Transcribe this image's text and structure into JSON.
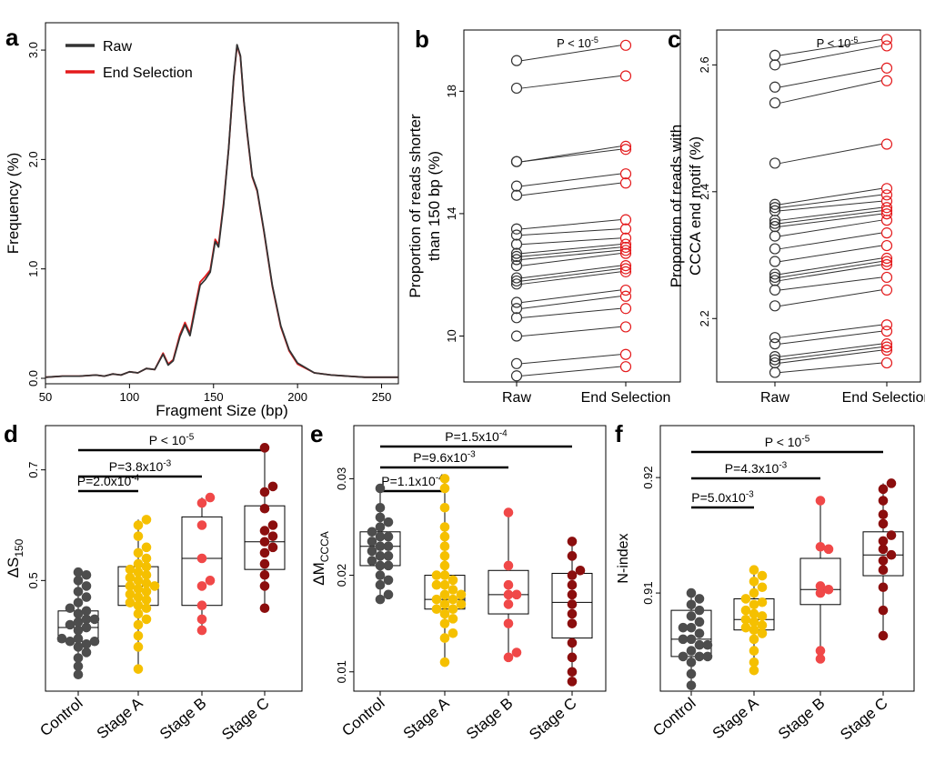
{
  "colors": {
    "raw": "#333333",
    "end": "#e41a1c",
    "control": "#4d4d4d",
    "stage_a": "#f5c000",
    "stage_b": "#f04848",
    "stage_c": "#8b0e0e"
  },
  "chart_data": [
    {
      "panel": "a",
      "type": "line",
      "xlabel": "Fragment Size (bp)",
      "ylabel": "Frequency (%)",
      "xlim": [
        50,
        260
      ],
      "ylim": [
        -0.05,
        3.25
      ],
      "xticks": [
        50,
        100,
        150,
        200,
        250
      ],
      "yticks": [
        0.0,
        1.0,
        2.0,
        3.0
      ],
      "ytick_labels": [
        "0.0",
        "1.0",
        "2.0",
        "3.0"
      ],
      "legend": [
        "Raw",
        "End Selection"
      ],
      "legend_position": "top-left",
      "series": [
        {
          "name": "Raw",
          "points": [
            [
              50,
              0.01
            ],
            [
              60,
              0.02
            ],
            [
              70,
              0.02
            ],
            [
              80,
              0.03
            ],
            [
              85,
              0.02
            ],
            [
              90,
              0.04
            ],
            [
              95,
              0.03
            ],
            [
              100,
              0.06
            ],
            [
              105,
              0.05
            ],
            [
              110,
              0.09
            ],
            [
              115,
              0.08
            ],
            [
              120,
              0.22
            ],
            [
              123,
              0.12
            ],
            [
              126,
              0.16
            ],
            [
              130,
              0.38
            ],
            [
              133,
              0.49
            ],
            [
              136,
              0.39
            ],
            [
              139,
              0.62
            ],
            [
              142,
              0.85
            ],
            [
              145,
              0.9
            ],
            [
              148,
              0.97
            ],
            [
              151,
              1.25
            ],
            [
              153,
              1.2
            ],
            [
              156,
              1.58
            ],
            [
              159,
              2.1
            ],
            [
              162,
              2.75
            ],
            [
              164,
              3.05
            ],
            [
              166,
              2.95
            ],
            [
              168,
              2.55
            ],
            [
              170,
              2.25
            ],
            [
              173,
              1.85
            ],
            [
              176,
              1.72
            ],
            [
              180,
              1.35
            ],
            [
              185,
              0.85
            ],
            [
              190,
              0.48
            ],
            [
              195,
              0.26
            ],
            [
              200,
              0.14
            ],
            [
              210,
              0.05
            ],
            [
              220,
              0.03
            ],
            [
              230,
              0.02
            ],
            [
              240,
              0.01
            ],
            [
              250,
              0.01
            ],
            [
              260,
              0.01
            ]
          ]
        },
        {
          "name": "End Selection",
          "points": [
            [
              50,
              0.01
            ],
            [
              60,
              0.02
            ],
            [
              70,
              0.02
            ],
            [
              80,
              0.03
            ],
            [
              85,
              0.02
            ],
            [
              90,
              0.04
            ],
            [
              95,
              0.03
            ],
            [
              100,
              0.06
            ],
            [
              105,
              0.05
            ],
            [
              110,
              0.09
            ],
            [
              115,
              0.08
            ],
            [
              120,
              0.23
            ],
            [
              123,
              0.13
            ],
            [
              126,
              0.17
            ],
            [
              130,
              0.4
            ],
            [
              133,
              0.51
            ],
            [
              136,
              0.41
            ],
            [
              139,
              0.65
            ],
            [
              142,
              0.88
            ],
            [
              145,
              0.93
            ],
            [
              148,
              0.99
            ],
            [
              151,
              1.27
            ],
            [
              153,
              1.22
            ],
            [
              156,
              1.6
            ],
            [
              159,
              2.1
            ],
            [
              162,
              2.74
            ],
            [
              164,
              3.04
            ],
            [
              166,
              2.94
            ],
            [
              168,
              2.54
            ],
            [
              170,
              2.24
            ],
            [
              173,
              1.84
            ],
            [
              176,
              1.71
            ],
            [
              180,
              1.34
            ],
            [
              185,
              0.84
            ],
            [
              190,
              0.47
            ],
            [
              195,
              0.25
            ],
            [
              200,
              0.13
            ],
            [
              210,
              0.05
            ],
            [
              220,
              0.03
            ],
            [
              230,
              0.02
            ],
            [
              240,
              0.01
            ],
            [
              250,
              0.01
            ],
            [
              260,
              0.01
            ]
          ]
        }
      ]
    },
    {
      "panel": "b",
      "type": "scatter",
      "ylabel_lines": [
        "Proportion of reads shorter",
        "than 150 bp (%)"
      ],
      "categories": [
        "Raw",
        "End Selection"
      ],
      "ylim": [
        8.5,
        20
      ],
      "yticks": [
        10,
        14,
        18
      ],
      "annotation": "P < 10",
      "annotation_exp": "-5",
      "pairs": [
        [
          8.7,
          9.0
        ],
        [
          9.1,
          9.4
        ],
        [
          10.0,
          10.3
        ],
        [
          10.6,
          10.9
        ],
        [
          10.9,
          11.3
        ],
        [
          11.1,
          11.5
        ],
        [
          11.7,
          12.1
        ],
        [
          11.8,
          12.2
        ],
        [
          11.9,
          12.3
        ],
        [
          12.3,
          12.7
        ],
        [
          12.5,
          12.8
        ],
        [
          12.6,
          12.9
        ],
        [
          12.7,
          13.0
        ],
        [
          13.0,
          13.2
        ],
        [
          13.3,
          13.5
        ],
        [
          13.5,
          13.8
        ],
        [
          14.6,
          15.0
        ],
        [
          14.9,
          15.3
        ],
        [
          15.7,
          16.1
        ],
        [
          15.7,
          16.2
        ],
        [
          18.1,
          18.5
        ],
        [
          19.0,
          19.5
        ]
      ]
    },
    {
      "panel": "c",
      "type": "scatter",
      "ylabel_lines": [
        "Proportion of reads with",
        "CCCA end motif (%)"
      ],
      "categories": [
        "Raw",
        "End Selection"
      ],
      "ylim": [
        2.1,
        2.655
      ],
      "yticks": [
        2.2,
        2.4,
        2.6
      ],
      "yticklabels": [
        "2.2",
        "2.4",
        "2.6"
      ],
      "annotation": "P < 10",
      "annotation_exp": "-5",
      "pairs": [
        [
          2.115,
          2.13
        ],
        [
          2.13,
          2.15
        ],
        [
          2.135,
          2.155
        ],
        [
          2.14,
          2.16
        ],
        [
          2.16,
          2.18
        ],
        [
          2.17,
          2.19
        ],
        [
          2.22,
          2.245
        ],
        [
          2.245,
          2.265
        ],
        [
          2.26,
          2.285
        ],
        [
          2.265,
          2.29
        ],
        [
          2.27,
          2.295
        ],
        [
          2.29,
          2.315
        ],
        [
          2.31,
          2.335
        ],
        [
          2.33,
          2.355
        ],
        [
          2.345,
          2.365
        ],
        [
          2.35,
          2.37
        ],
        [
          2.355,
          2.375
        ],
        [
          2.37,
          2.385
        ],
        [
          2.375,
          2.395
        ],
        [
          2.38,
          2.405
        ],
        [
          2.445,
          2.475
        ],
        [
          2.54,
          2.575
        ],
        [
          2.565,
          2.595
        ],
        [
          2.6,
          2.63
        ],
        [
          2.615,
          2.64
        ]
      ]
    },
    {
      "panel": "d",
      "type": "box",
      "ylabel": "ΔS",
      "ylabel_sub": "150",
      "categories": [
        "Control",
        "Stage A",
        "Stage B",
        "Stage C"
      ],
      "ylim": [
        0.3,
        0.78
      ],
      "yticks": [
        0.5,
        0.7
      ],
      "yticklabels": [
        "0.5",
        "0.7"
      ],
      "comparisons": [
        {
          "from": 0,
          "to": 1,
          "label": "P=2.0x10",
          "exp": "-4"
        },
        {
          "from": 0,
          "to": 2,
          "label": "P=3.8x10",
          "exp": "-3"
        },
        {
          "from": 0,
          "to": 3,
          "label": "P < 10",
          "exp": "-5"
        }
      ],
      "groups": [
        {
          "name": "Control",
          "q1": 0.39,
          "median": 0.415,
          "q3": 0.445,
          "whisker_low": 0.33,
          "whisker_high": 0.515,
          "points": [
            0.33,
            0.345,
            0.36,
            0.37,
            0.38,
            0.385,
            0.39,
            0.39,
            0.395,
            0.395,
            0.41,
            0.415,
            0.42,
            0.425,
            0.43,
            0.43,
            0.44,
            0.445,
            0.45,
            0.46,
            0.47,
            0.48,
            0.49,
            0.5,
            0.51,
            0.515
          ]
        },
        {
          "name": "Stage A",
          "q1": 0.455,
          "median": 0.49,
          "q3": 0.525,
          "whisker_low": 0.34,
          "whisker_high": 0.61,
          "points": [
            0.34,
            0.38,
            0.4,
            0.42,
            0.43,
            0.44,
            0.45,
            0.455,
            0.46,
            0.465,
            0.47,
            0.475,
            0.48,
            0.485,
            0.49,
            0.49,
            0.495,
            0.5,
            0.505,
            0.51,
            0.515,
            0.52,
            0.525,
            0.53,
            0.54,
            0.55,
            0.56,
            0.58,
            0.6,
            0.61
          ]
        },
        {
          "name": "Stage B",
          "q1": 0.455,
          "median": 0.54,
          "q3": 0.615,
          "whisker_low": 0.41,
          "whisker_high": 0.65,
          "points": [
            0.41,
            0.43,
            0.455,
            0.49,
            0.5,
            0.54,
            0.6,
            0.64,
            0.65
          ]
        },
        {
          "name": "Stage C",
          "q1": 0.52,
          "median": 0.57,
          "q3": 0.635,
          "whisker_low": 0.45,
          "whisker_high": 0.74,
          "points": [
            0.45,
            0.49,
            0.51,
            0.53,
            0.55,
            0.56,
            0.57,
            0.58,
            0.59,
            0.6,
            0.63,
            0.66,
            0.67,
            0.74
          ]
        }
      ]
    },
    {
      "panel": "e",
      "type": "box",
      "ylabel": "ΔM",
      "ylabel_sub": "CCCA",
      "categories": [
        "Control",
        "Stage A",
        "Stage B",
        "Stage C"
      ],
      "ylim": [
        0.008,
        0.0355
      ],
      "yticks": [
        0.01,
        0.02,
        0.03
      ],
      "yticklabels": [
        "0.01",
        "0.02",
        "0.03"
      ],
      "comparisons": [
        {
          "from": 0,
          "to": 1,
          "label": "P=1.1x10",
          "exp": "-4"
        },
        {
          "from": 0,
          "to": 2,
          "label": "P=9.6x10",
          "exp": "-3"
        },
        {
          "from": 0,
          "to": 3,
          "label": "P=1.5x10",
          "exp": "-4"
        }
      ],
      "groups": [
        {
          "name": "Control",
          "q1": 0.021,
          "median": 0.023,
          "q3": 0.0245,
          "whisker_low": 0.0175,
          "whisker_high": 0.029,
          "points": [
            0.0175,
            0.018,
            0.019,
            0.0195,
            0.02,
            0.021,
            0.021,
            0.0215,
            0.022,
            0.022,
            0.0225,
            0.023,
            0.023,
            0.0235,
            0.024,
            0.024,
            0.0245,
            0.025,
            0.0255,
            0.026,
            0.027,
            0.029
          ]
        },
        {
          "name": "Stage A",
          "q1": 0.0165,
          "median": 0.0175,
          "q3": 0.02,
          "whisker_low": 0.011,
          "whisker_high": 0.03,
          "points": [
            0.011,
            0.0135,
            0.014,
            0.015,
            0.0155,
            0.016,
            0.0165,
            0.0165,
            0.017,
            0.017,
            0.0175,
            0.0175,
            0.018,
            0.018,
            0.0185,
            0.019,
            0.019,
            0.0195,
            0.02,
            0.02,
            0.021,
            0.022,
            0.023,
            0.024,
            0.025,
            0.027,
            0.029,
            0.03
          ]
        },
        {
          "name": "Stage B",
          "q1": 0.016,
          "median": 0.018,
          "q3": 0.0205,
          "whisker_low": 0.0115,
          "whisker_high": 0.0265,
          "points": [
            0.0115,
            0.012,
            0.015,
            0.017,
            0.018,
            0.018,
            0.019,
            0.021,
            0.0265
          ]
        },
        {
          "name": "Stage C",
          "q1": 0.0135,
          "median": 0.0172,
          "q3": 0.0202,
          "whisker_low": 0.009,
          "whisker_high": 0.0235,
          "points": [
            0.009,
            0.01,
            0.0115,
            0.013,
            0.015,
            0.016,
            0.017,
            0.018,
            0.019,
            0.02,
            0.0205,
            0.022,
            0.0235
          ]
        }
      ]
    },
    {
      "panel": "f",
      "type": "box",
      "ylabel": "N-index",
      "categories": [
        "Control",
        "Stage A",
        "Stage B",
        "Stage C"
      ],
      "ylim": [
        0.9015,
        0.9245
      ],
      "yticks": [
        0.91,
        0.92
      ],
      "yticklabels": [
        "0.91",
        "0.92"
      ],
      "comparisons": [
        {
          "from": 0,
          "to": 1,
          "label": "P=5.0x10",
          "exp": "-3"
        },
        {
          "from": 0,
          "to": 2,
          "label": "P=4.3x10",
          "exp": "-3"
        },
        {
          "from": 0,
          "to": 3,
          "label": "P < 10",
          "exp": "-5"
        }
      ],
      "groups": [
        {
          "name": "Control",
          "q1": 0.9045,
          "median": 0.906,
          "q3": 0.9085,
          "whisker_low": 0.902,
          "whisker_high": 0.91,
          "points": [
            0.902,
            0.903,
            0.904,
            0.9045,
            0.9045,
            0.905,
            0.9055,
            0.906,
            0.906,
            0.9065,
            0.907,
            0.907,
            0.9075,
            0.908,
            0.9085,
            0.909,
            0.9095,
            0.91,
            0.9045,
            0.9055
          ]
        },
        {
          "name": "Stage A",
          "q1": 0.9068,
          "median": 0.9077,
          "q3": 0.9095,
          "whisker_low": 0.9033,
          "whisker_high": 0.912,
          "points": [
            0.9033,
            0.904,
            0.905,
            0.906,
            0.9065,
            0.9068,
            0.907,
            0.9072,
            0.9075,
            0.9077,
            0.908,
            0.9082,
            0.9085,
            0.909,
            0.9092,
            0.9095,
            0.91,
            0.9105,
            0.911,
            0.9115,
            0.912
          ]
        },
        {
          "name": "Stage B",
          "q1": 0.909,
          "median": 0.9103,
          "q3": 0.913,
          "whisker_low": 0.9043,
          "whisker_high": 0.918,
          "points": [
            0.9043,
            0.905,
            0.91,
            0.9103,
            0.9106,
            0.914,
            0.9138,
            0.918
          ]
        },
        {
          "name": "Stage C",
          "q1": 0.9115,
          "median": 0.9133,
          "q3": 0.9153,
          "whisker_low": 0.9063,
          "whisker_high": 0.9195,
          "points": [
            0.9063,
            0.9085,
            0.9105,
            0.912,
            0.9128,
            0.9133,
            0.9138,
            0.9145,
            0.915,
            0.916,
            0.9168,
            0.918,
            0.919,
            0.9195
          ]
        }
      ]
    }
  ]
}
